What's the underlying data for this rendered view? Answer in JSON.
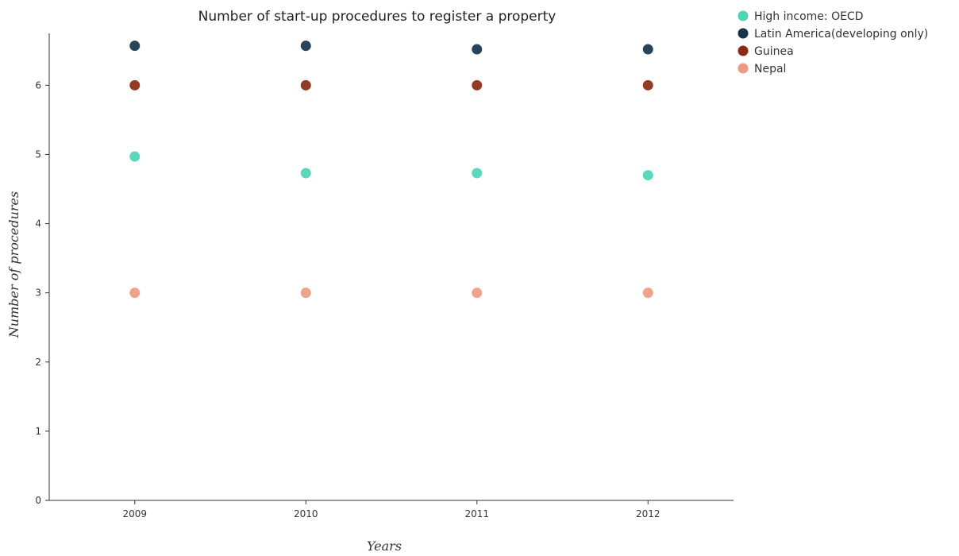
{
  "chart_data": {
    "type": "scatter",
    "title": "Number of start-up procedures to register a property",
    "xlabel": "Years",
    "ylabel": "Number of procedures",
    "categories": [
      "2009",
      "2010",
      "2011",
      "2012"
    ],
    "ylim": [
      0,
      6.75
    ],
    "yticks": [
      0,
      1,
      2,
      3,
      4,
      5,
      6
    ],
    "ytick_labels": [
      "0",
      "1",
      "2",
      "3",
      "4",
      "5",
      "6"
    ],
    "grid": false,
    "legend_position": "top-right",
    "series": [
      {
        "name": "High income: OECD",
        "color": "#4dd5b6",
        "values": [
          4.97,
          4.73,
          4.73,
          4.7
        ]
      },
      {
        "name": "Latin America(developing only)",
        "color": "#17344a",
        "values": [
          6.57,
          6.57,
          6.52,
          6.52
        ]
      },
      {
        "name": "Guinea",
        "color": "#8b2a12",
        "values": [
          6.0,
          6.0,
          6.0,
          6.0
        ]
      },
      {
        "name": "Nepal",
        "color": "#ee9a82",
        "values": [
          3.0,
          3.0,
          3.0,
          3.0
        ]
      }
    ]
  }
}
